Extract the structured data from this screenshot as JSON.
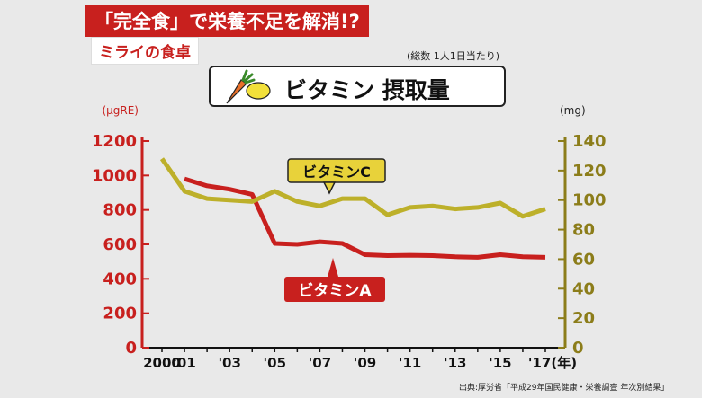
{
  "header": {
    "banner": "「完全食」で栄養不足を解消!?",
    "subtitle": "ミライの食卓",
    "unit_note": "(総数 1人1日当たり)",
    "title": "ビタミン 摂取量",
    "source": "出典:厚労省「平成29年国民健康・栄養調査 年次別結果」"
  },
  "colors": {
    "vitaminA": "#c8201e",
    "vitaminC": "#bdb02a",
    "left_axis": "#c8201e",
    "right_axis": "#8c7d1a"
  },
  "chart_data": {
    "type": "line",
    "title": "ビタミン 摂取量",
    "x_tick_labels": [
      "2000",
      "'01",
      "'03",
      "'05",
      "'07",
      "'09",
      "'11",
      "'13",
      "'15",
      "'17(年)"
    ],
    "x": [
      2000,
      2001,
      2002,
      2003,
      2004,
      2005,
      2006,
      2007,
      2008,
      2009,
      2010,
      2011,
      2012,
      2013,
      2014,
      2015,
      2016,
      2017
    ],
    "left_axis": {
      "label": "(μgRE)",
      "range": [
        0,
        1200
      ],
      "ticks": [
        "0",
        "200",
        "400",
        "600",
        "800",
        "1000",
        "1200"
      ]
    },
    "right_axis": {
      "label": "(mg)",
      "range": [
        0,
        140
      ],
      "ticks": [
        "0",
        "20",
        "40",
        "60",
        "80",
        "100",
        "120",
        "140"
      ]
    },
    "series": [
      {
        "name": "ビタミンA",
        "axis": "left",
        "x": [
          2001,
          2002,
          2003,
          2004,
          2005,
          2006,
          2007,
          2008,
          2009,
          2010,
          2011,
          2012,
          2013,
          2014,
          2015,
          2016,
          2017
        ],
        "values": [
          980,
          940,
          920,
          890,
          605,
          600,
          615,
          605,
          540,
          535,
          537,
          535,
          528,
          525,
          540,
          528,
          525
        ]
      },
      {
        "name": "ビタミンC",
        "axis": "right",
        "x": [
          2000,
          2001,
          2002,
          2003,
          2004,
          2005,
          2006,
          2007,
          2008,
          2009,
          2010,
          2011,
          2012,
          2013,
          2014,
          2015,
          2016,
          2017
        ],
        "values": [
          128,
          106,
          101,
          100,
          99,
          106,
          99,
          96,
          101,
          101,
          90,
          95,
          96,
          94,
          95,
          98,
          89,
          94
        ]
      }
    ],
    "legend": "inline"
  }
}
